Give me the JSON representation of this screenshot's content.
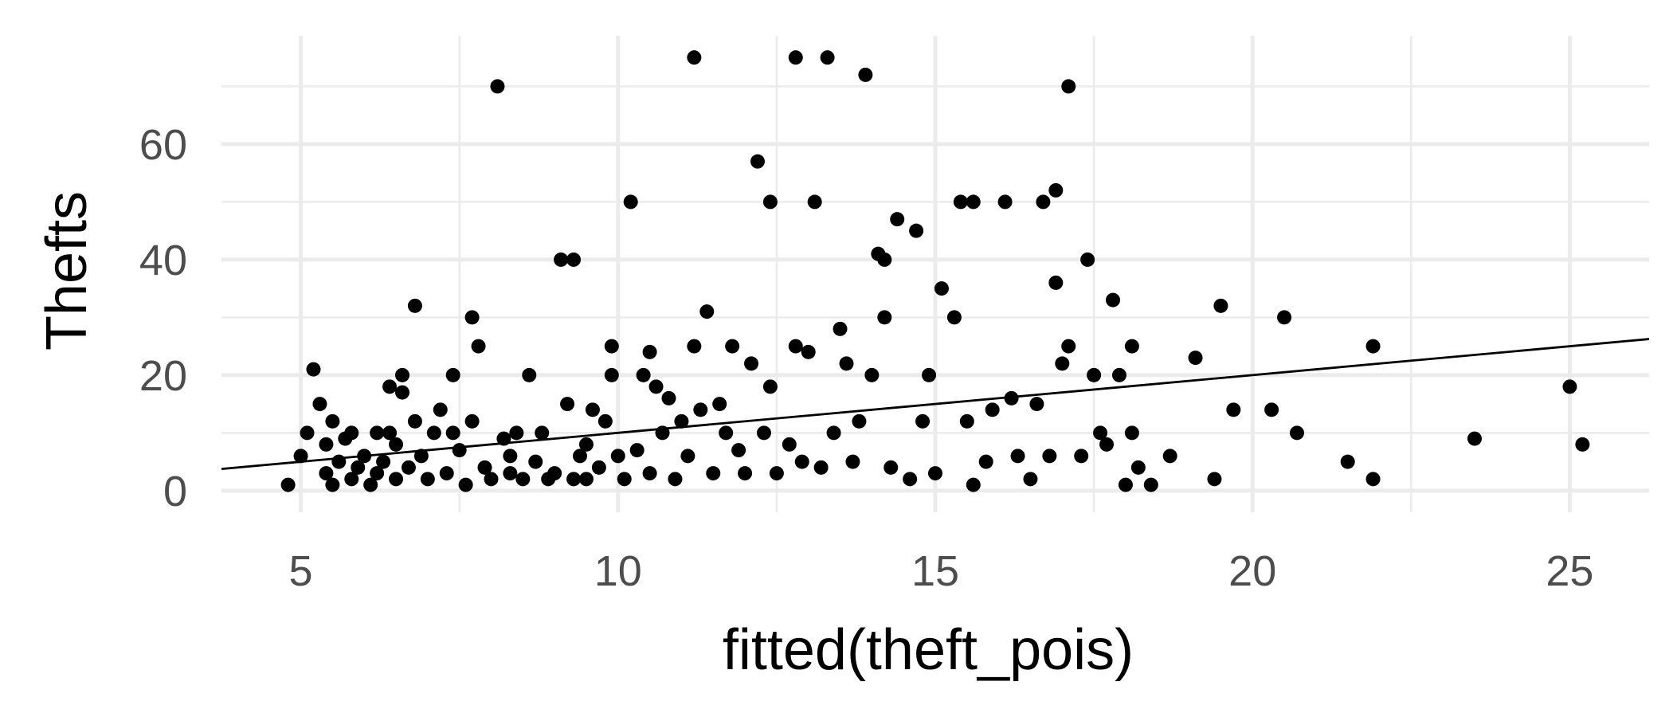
{
  "chart_data": {
    "type": "scatter",
    "title": "",
    "xlabel": "fitted(theft_pois)",
    "ylabel": "Thefts",
    "xlim": [
      3.75,
      26.25
    ],
    "ylim": [
      -3.75,
      78.75
    ],
    "x_ticks": [
      5,
      10,
      15,
      20,
      25
    ],
    "x_tick_labels": [
      "5",
      "10",
      "15",
      "20",
      "25"
    ],
    "y_ticks": [
      0,
      20,
      40,
      60
    ],
    "y_tick_labels": [
      "0",
      "20",
      "40",
      "60"
    ],
    "grid": true,
    "legend": "none",
    "point_color": "#000000",
    "line_color": "#000000",
    "reference_line": {
      "type": "identity",
      "slope": 1,
      "intercept": 0
    },
    "points": [
      [
        4.8,
        1
      ],
      [
        5.0,
        6
      ],
      [
        5.1,
        10
      ],
      [
        5.2,
        21
      ],
      [
        5.3,
        15
      ],
      [
        5.4,
        3
      ],
      [
        5.4,
        8
      ],
      [
        5.5,
        12
      ],
      [
        5.5,
        1
      ],
      [
        5.6,
        5
      ],
      [
        5.7,
        9
      ],
      [
        5.8,
        2
      ],
      [
        5.8,
        10
      ],
      [
        5.9,
        4
      ],
      [
        6.0,
        6
      ],
      [
        6.1,
        1
      ],
      [
        6.2,
        3
      ],
      [
        6.2,
        10
      ],
      [
        6.3,
        5
      ],
      [
        6.4,
        10
      ],
      [
        6.4,
        18
      ],
      [
        6.5,
        2
      ],
      [
        6.5,
        8
      ],
      [
        6.6,
        20
      ],
      [
        6.6,
        17
      ],
      [
        6.7,
        4
      ],
      [
        6.8,
        12
      ],
      [
        6.8,
        32
      ],
      [
        6.9,
        6
      ],
      [
        7.0,
        2
      ],
      [
        7.1,
        10
      ],
      [
        7.2,
        14
      ],
      [
        7.3,
        3
      ],
      [
        7.4,
        10
      ],
      [
        7.4,
        20
      ],
      [
        7.5,
        7
      ],
      [
        7.6,
        1
      ],
      [
        7.7,
        12
      ],
      [
        7.7,
        30
      ],
      [
        7.8,
        25
      ],
      [
        7.9,
        4
      ],
      [
        8.0,
        2
      ],
      [
        8.1,
        70
      ],
      [
        8.2,
        9
      ],
      [
        8.3,
        3
      ],
      [
        8.3,
        6
      ],
      [
        8.4,
        10
      ],
      [
        8.5,
        2
      ],
      [
        8.6,
        20
      ],
      [
        8.7,
        5
      ],
      [
        8.8,
        10
      ],
      [
        8.9,
        2
      ],
      [
        9.0,
        3
      ],
      [
        9.1,
        40
      ],
      [
        9.2,
        15
      ],
      [
        9.3,
        2
      ],
      [
        9.3,
        40
      ],
      [
        9.4,
        6
      ],
      [
        9.5,
        8
      ],
      [
        9.5,
        2
      ],
      [
        9.6,
        14
      ],
      [
        9.7,
        4
      ],
      [
        9.8,
        12
      ],
      [
        9.9,
        25
      ],
      [
        9.9,
        20
      ],
      [
        10.0,
        6
      ],
      [
        10.1,
        2
      ],
      [
        10.2,
        50
      ],
      [
        10.3,
        7
      ],
      [
        10.4,
        20
      ],
      [
        10.5,
        3
      ],
      [
        10.5,
        24
      ],
      [
        10.6,
        18
      ],
      [
        10.7,
        10
      ],
      [
        10.8,
        16
      ],
      [
        10.9,
        2
      ],
      [
        11.0,
        12
      ],
      [
        11.1,
        6
      ],
      [
        11.2,
        75
      ],
      [
        11.2,
        25
      ],
      [
        11.3,
        14
      ],
      [
        11.4,
        31
      ],
      [
        11.5,
        3
      ],
      [
        11.6,
        15
      ],
      [
        11.7,
        10
      ],
      [
        11.8,
        25
      ],
      [
        11.9,
        7
      ],
      [
        12.0,
        3
      ],
      [
        12.1,
        22
      ],
      [
        12.2,
        57
      ],
      [
        12.3,
        10
      ],
      [
        12.4,
        50
      ],
      [
        12.4,
        18
      ],
      [
        12.5,
        3
      ],
      [
        12.7,
        8
      ],
      [
        12.8,
        75
      ],
      [
        12.8,
        25
      ],
      [
        12.9,
        5
      ],
      [
        13.0,
        24
      ],
      [
        13.1,
        50
      ],
      [
        13.2,
        4
      ],
      [
        13.3,
        75
      ],
      [
        13.4,
        10
      ],
      [
        13.5,
        28
      ],
      [
        13.6,
        22
      ],
      [
        13.7,
        5
      ],
      [
        13.8,
        12
      ],
      [
        13.9,
        72
      ],
      [
        14.0,
        20
      ],
      [
        14.1,
        41
      ],
      [
        14.2,
        40
      ],
      [
        14.2,
        30
      ],
      [
        14.3,
        4
      ],
      [
        14.4,
        47
      ],
      [
        14.6,
        2
      ],
      [
        14.7,
        45
      ],
      [
        14.8,
        12
      ],
      [
        14.9,
        20
      ],
      [
        15.0,
        3
      ],
      [
        15.1,
        35
      ],
      [
        15.3,
        30
      ],
      [
        15.4,
        50
      ],
      [
        15.5,
        12
      ],
      [
        15.6,
        50
      ],
      [
        15.6,
        1
      ],
      [
        15.8,
        5
      ],
      [
        15.9,
        14
      ],
      [
        16.1,
        50
      ],
      [
        16.2,
        16
      ],
      [
        16.3,
        6
      ],
      [
        16.5,
        2
      ],
      [
        16.6,
        15
      ],
      [
        16.7,
        50
      ],
      [
        16.8,
        6
      ],
      [
        16.9,
        36
      ],
      [
        16.9,
        52
      ],
      [
        17.0,
        22
      ],
      [
        17.1,
        70
      ],
      [
        17.1,
        25
      ],
      [
        17.3,
        6
      ],
      [
        17.4,
        40
      ],
      [
        17.5,
        20
      ],
      [
        17.6,
        10
      ],
      [
        17.7,
        8
      ],
      [
        17.8,
        33
      ],
      [
        17.9,
        20
      ],
      [
        18.0,
        1
      ],
      [
        18.1,
        10
      ],
      [
        18.1,
        25
      ],
      [
        18.2,
        4
      ],
      [
        18.4,
        1
      ],
      [
        18.7,
        6
      ],
      [
        19.1,
        23
      ],
      [
        19.4,
        2
      ],
      [
        19.5,
        32
      ],
      [
        19.7,
        14
      ],
      [
        20.3,
        14
      ],
      [
        20.5,
        30
      ],
      [
        20.7,
        10
      ],
      [
        21.5,
        5
      ],
      [
        21.9,
        25
      ],
      [
        21.9,
        2
      ],
      [
        23.5,
        9
      ],
      [
        25.0,
        18
      ],
      [
        25.2,
        8
      ]
    ]
  }
}
